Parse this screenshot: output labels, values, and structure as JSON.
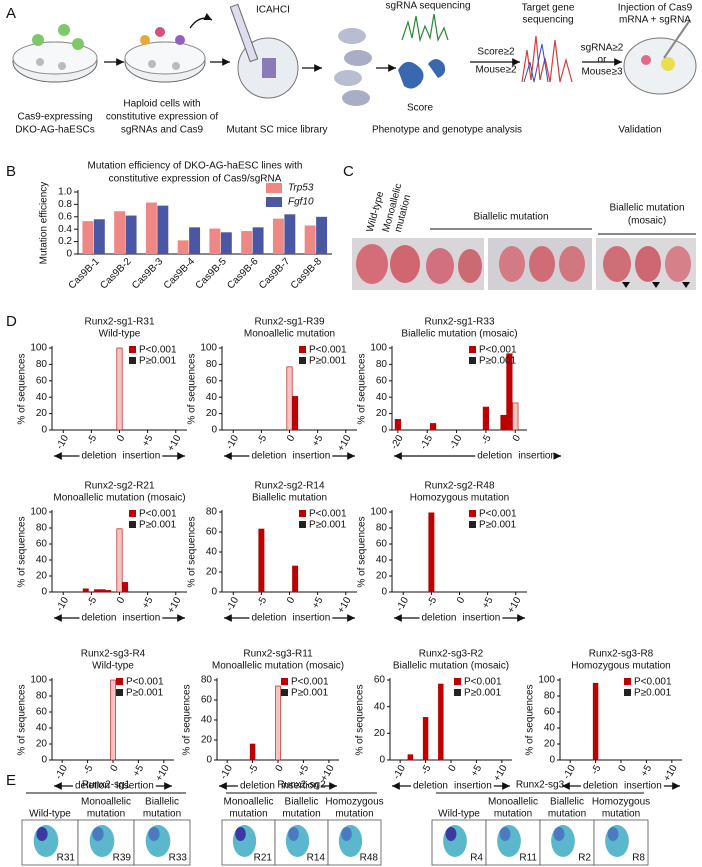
{
  "panel_a": {
    "letter": "A",
    "reagent": "ICAHCI",
    "sgrna_seq": "sgRNA sequencing",
    "score": "Score",
    "target_seq": [
      "Target gene",
      "sequencing"
    ],
    "injection": [
      "Injection of Cas9",
      "mRNA + sgRNA"
    ],
    "criteria_1": [
      "Score≥2",
      "Mouse≥2"
    ],
    "criteria_2": [
      "sgRNA≥2",
      "or",
      "Mouse≥3"
    ],
    "steps": [
      [
        "Cas9-expressing",
        "DKO-AG-haESCs"
      ],
      [
        "Haploid cells with",
        "constitutive expression of",
        "sgRNAs and Cas9"
      ],
      [
        "Mutant SC mice library"
      ],
      [
        "Phenotype and genotype analysis"
      ],
      [
        "Validation"
      ]
    ]
  },
  "panel_b_letter": "B",
  "panel_c": {
    "letter": "C",
    "wild_type": "Wild-type",
    "monoallelic": [
      "Monoallelic",
      "mutation"
    ],
    "biallelic": "Biallelic mutation",
    "biallelic_mosaic": [
      "Biallelic mutation",
      "(mosaic)"
    ]
  },
  "panel_d_letter": "D",
  "panel_e": {
    "letter": "E",
    "groups": [
      {
        "name": "Runx2-sg1",
        "columns": [
          [
            "Wild-type"
          ],
          [
            "Monoallelic",
            "mutation"
          ],
          [
            "Biallelic",
            "mutation"
          ]
        ],
        "samples": [
          "R31",
          "R39",
          "R33"
        ]
      },
      {
        "name": "Runx2-sg2",
        "columns": [
          [
            "Monoallelic",
            "mutation"
          ],
          [
            "Biallelic",
            "mutation"
          ],
          [
            "Homozygous",
            "mutation"
          ]
        ],
        "samples": [
          "R21",
          "R14",
          "R48"
        ]
      },
      {
        "name": "Runx2-sg3",
        "columns": [
          [
            "Wild-type"
          ],
          [
            "Monoallelic",
            "mutation"
          ],
          [
            "Biallelic",
            "mutation"
          ],
          [
            "Homozygous",
            "mutation"
          ]
        ],
        "samples": [
          "R4",
          "R11",
          "R2",
          "R8"
        ]
      }
    ]
  },
  "chart_data": [
    {
      "type": "grouped_bar",
      "title": [
        "Mutation efficiency of DKO-AG-haESC lines with",
        "constitutive expression of Cas9/sgRNA"
      ],
      "ylabel": "Mutation efficiency",
      "categories": [
        "Cas9B-1",
        "Cas9B-2",
        "Cas9B-3",
        "Cas9B-4",
        "Cas9B-5",
        "Cas9B-6",
        "Cas9B-7",
        "Cas9B-8"
      ],
      "series": [
        {
          "name": "Trp53",
          "color": "#ef8784",
          "values": [
            0.53,
            0.69,
            0.83,
            0.22,
            0.41,
            0.37,
            0.57,
            0.46
          ]
        },
        {
          "name": "Fgf10",
          "color": "#4b57a3",
          "values": [
            0.56,
            0.62,
            0.78,
            0.43,
            0.35,
            0.43,
            0.64,
            0.6
          ]
        }
      ],
      "ylim": [
        0,
        1
      ],
      "yticks": [
        0,
        0.2,
        0.4,
        0.6,
        0.8,
        {
          "value": 1,
          "label": "1.0"
        }
      ],
      "legend": "top-right"
    },
    {
      "type": "bar",
      "title": [
        "Runx2-sg1-R31",
        "Wild-type"
      ],
      "ylabel": "% of sequences",
      "xlabel": [
        "deletion",
        "insertion"
      ],
      "x": [
        0
      ],
      "values": [
        100
      ],
      "colors": [
        "#f6c3c3"
      ],
      "legend": [
        {
          "name": "P<0.001",
          "color": "#c00000"
        },
        {
          "name": "P≥0.001",
          "color": "#222222"
        }
      ],
      "xlim": [
        -12,
        12
      ],
      "xticks": [
        -10,
        -5,
        0,
        {
          "value": 5,
          "label": "+5"
        },
        {
          "value": 10,
          "label": "+10"
        }
      ],
      "ylim": [
        0,
        100
      ],
      "yticks": [
        0,
        20,
        40,
        60,
        80,
        100
      ]
    },
    {
      "type": "bar",
      "title": [
        "Runx2-sg1-R39",
        "Monoallelic mutation"
      ],
      "ylabel": "% of sequences",
      "xlabel": [
        "deletion",
        "insertion"
      ],
      "x": [
        0,
        1
      ],
      "values": [
        77,
        41
      ],
      "colors": [
        "#f6c3c3",
        "#c00000"
      ],
      "legend": [
        {
          "name": "P<0.001",
          "color": "#c00000"
        },
        {
          "name": "P≥0.001",
          "color": "#222222"
        }
      ],
      "xlim": [
        -12,
        12
      ],
      "xticks": [
        -10,
        -5,
        0,
        {
          "value": 5,
          "label": "+5"
        },
        {
          "value": 10,
          "label": "+10"
        }
      ],
      "ylim": [
        0,
        100
      ],
      "yticks": [
        0,
        20,
        40,
        60,
        80,
        100
      ]
    },
    {
      "type": "bar",
      "title": [
        "Runx2-sg1-R33",
        "Biallelic mutation (mosaic)"
      ],
      "ylabel": "% of sequences",
      "xlabel": [
        "deletion",
        "insertion"
      ],
      "x": [
        -20,
        -14,
        -5,
        -2,
        -1,
        0
      ],
      "values": [
        13,
        8,
        28,
        18,
        93,
        33
      ],
      "colors": [
        "#c00000",
        "#c00000",
        "#c00000",
        "#c00000",
        "#c00000",
        "#f6c3c3"
      ],
      "legend": [
        {
          "name": "P<0.001",
          "color": "#c00000"
        },
        {
          "name": "P≥0.001",
          "color": "#222222"
        }
      ],
      "xlim": [
        -21,
        2
      ],
      "xticks": [
        -20,
        -15,
        -10,
        -5,
        0
      ],
      "ylim": [
        0,
        100
      ],
      "yticks": [
        0,
        20,
        40,
        60,
        80,
        100
      ]
    },
    {
      "type": "bar",
      "title": [
        "Runx2-sg2-R21",
        "Monoallelic mutation (mosaic)"
      ],
      "ylabel": "% of sequences",
      "xlabel": [
        "deletion",
        "insertion"
      ],
      "x": [
        -6,
        -4,
        -3,
        -2,
        0,
        1
      ],
      "values": [
        4,
        3,
        3,
        2,
        79,
        12
      ],
      "colors": [
        "#c00000",
        "#c00000",
        "#c00000",
        "#c00000",
        "#f6c3c3",
        "#c00000"
      ],
      "legend": [
        {
          "name": "P<0.001",
          "color": "#c00000"
        },
        {
          "name": "P≥0.001",
          "color": "#222222"
        }
      ],
      "xlim": [
        -12,
        12
      ],
      "xticks": [
        -10,
        -5,
        0,
        {
          "value": 5,
          "label": "+5"
        },
        {
          "value": 10,
          "label": "+10"
        }
      ],
      "ylim": [
        0,
        100
      ],
      "yticks": [
        0,
        20,
        40,
        60,
        80,
        100
      ]
    },
    {
      "type": "bar",
      "title": [
        "Runx2-sg2-R14",
        "Biallelic mutation"
      ],
      "ylabel": "% of sequences",
      "xlabel": [
        "deletion",
        "insertion"
      ],
      "x": [
        -5,
        1
      ],
      "values": [
        63,
        26
      ],
      "colors": [
        "#c00000",
        "#c00000"
      ],
      "legend": [
        {
          "name": "P<0.001",
          "color": "#c00000"
        },
        {
          "name": "P≥0.001",
          "color": "#222222"
        }
      ],
      "xlim": [
        -12,
        12
      ],
      "xticks": [
        -10,
        -5,
        0,
        {
          "value": 5,
          "label": "+5"
        },
        {
          "value": 10,
          "label": "+10"
        }
      ],
      "ylim": [
        0,
        80
      ],
      "yticks": [
        0,
        20,
        40,
        60,
        80
      ]
    },
    {
      "type": "bar",
      "title": [
        "Runx2-sg2-R48",
        "Homozygous mutation"
      ],
      "ylabel": "% of sequences",
      "xlabel": [
        "deletion",
        "insertion"
      ],
      "x": [
        -5
      ],
      "values": [
        99
      ],
      "colors": [
        "#c00000"
      ],
      "legend": [
        {
          "name": "P<0.001",
          "color": "#c00000"
        },
        {
          "name": "P≥0.001",
          "color": "#222222"
        }
      ],
      "xlim": [
        -12,
        12
      ],
      "xticks": [
        -10,
        -5,
        0,
        {
          "value": 5,
          "label": "+5"
        },
        {
          "value": 10,
          "label": "+10"
        }
      ],
      "ylim": [
        0,
        100
      ],
      "yticks": [
        0,
        20,
        40,
        60,
        80,
        100
      ]
    },
    {
      "type": "bar",
      "title": [
        "Runx2-sg3-R4",
        "Wild-type"
      ],
      "ylabel": "% of sequences",
      "xlabel": [
        "deletion",
        "insertion"
      ],
      "x": [
        0
      ],
      "values": [
        100
      ],
      "colors": [
        "#f6c3c3"
      ],
      "legend": [
        {
          "name": "P<0.001",
          "color": "#c00000"
        },
        {
          "name": "P≥0.001",
          "color": "#222222"
        }
      ],
      "xlim": [
        -12,
        12
      ],
      "xticks": [
        -10,
        -5,
        0,
        {
          "value": 5,
          "label": "+5"
        },
        {
          "value": 10,
          "label": "+10"
        }
      ],
      "ylim": [
        0,
        100
      ],
      "yticks": [
        0,
        20,
        40,
        60,
        80,
        100
      ]
    },
    {
      "type": "bar",
      "title": [
        "Runx2-sg3-R11",
        "Monoallelic mutation (mosaic)"
      ],
      "ylabel": "% of sequences",
      "xlabel": [
        "deletion",
        "insertion"
      ],
      "x": [
        -5,
        0
      ],
      "values": [
        16,
        74
      ],
      "colors": [
        "#c00000",
        "#f6c3c3"
      ],
      "legend": [
        {
          "name": "P<0.001",
          "color": "#c00000"
        },
        {
          "name": "P≥0.001",
          "color": "#222222"
        }
      ],
      "xlim": [
        -12,
        12
      ],
      "xticks": [
        -10,
        -5,
        0,
        {
          "value": 5,
          "label": "+5"
        },
        {
          "value": 10,
          "label": "+10"
        }
      ],
      "ylim": [
        0,
        80
      ],
      "yticks": [
        0,
        20,
        40,
        60,
        80
      ]
    },
    {
      "type": "bar",
      "title": [
        "Runx2-sg3-R2",
        "Biallelic mutation (mosaic)"
      ],
      "ylabel": "% of sequences",
      "xlabel": [
        "deletion",
        "insertion"
      ],
      "x": [
        -8,
        -5,
        -2
      ],
      "values": [
        4,
        32,
        57
      ],
      "colors": [
        "#c00000",
        "#c00000",
        "#c00000"
      ],
      "legend": [
        {
          "name": "P<0.001",
          "color": "#c00000"
        },
        {
          "name": "P≥0.001",
          "color": "#222222"
        }
      ],
      "xlim": [
        -12,
        12
      ],
      "xticks": [
        -10,
        -5,
        0,
        {
          "value": 5,
          "label": "+5"
        },
        {
          "value": 10,
          "label": "+10"
        }
      ],
      "ylim": [
        0,
        60
      ],
      "yticks": [
        0,
        20,
        40,
        60
      ]
    },
    {
      "type": "bar",
      "title": [
        "Runx2-sg3-R8",
        "Homozygous mutation"
      ],
      "ylabel": "% of sequences",
      "xlabel": [
        "deletion",
        "insertion"
      ],
      "x": [
        -5
      ],
      "values": [
        96
      ],
      "colors": [
        "#c00000"
      ],
      "legend": [
        {
          "name": "P<0.001",
          "color": "#c00000"
        },
        {
          "name": "P≥0.001",
          "color": "#222222"
        }
      ],
      "xlim": [
        -12,
        12
      ],
      "xticks": [
        -10,
        -5,
        0,
        {
          "value": 5,
          "label": "+5"
        },
        {
          "value": 10,
          "label": "+10"
        }
      ],
      "ylim": [
        0,
        100
      ],
      "yticks": [
        0,
        20,
        40,
        60,
        80,
        100
      ]
    }
  ]
}
